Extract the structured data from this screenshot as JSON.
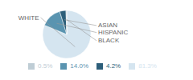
{
  "chart_data": {
    "type": "pie",
    "categories": [
      "WHITE",
      "HISPANIC",
      "ASIAN",
      "BLACK"
    ],
    "values": [
      81.3,
      14.0,
      4.2,
      0.5
    ],
    "value_labels": [
      "81.3%",
      "14.0%",
      "4.2%",
      "0.5%"
    ],
    "colors": [
      "#d5e5f0",
      "#5a94b0",
      "#2d5f7a",
      "#bfcdd5"
    ],
    "legend": "bottom"
  }
}
